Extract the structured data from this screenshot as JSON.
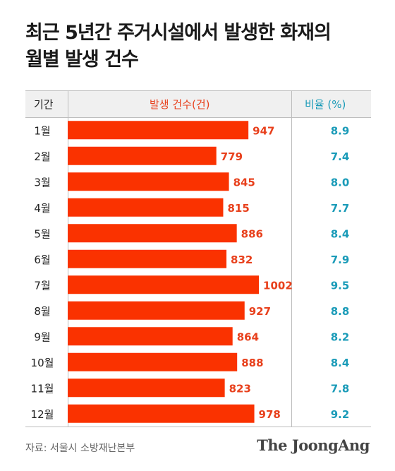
{
  "title_line1": "최근 5년간 주거시설에서 발생한 화재의",
  "title_line2": "월별 발생 건수",
  "chart_data": {
    "type": "bar",
    "orientation": "horizontal",
    "columns": [
      "기간",
      "발생 건수(건)",
      "비율 (%)"
    ],
    "categories": [
      "1월",
      "2월",
      "3월",
      "4월",
      "5월",
      "6월",
      "7월",
      "8월",
      "9월",
      "10월",
      "11월",
      "12월"
    ],
    "values": [
      947,
      779,
      845,
      815,
      886,
      832,
      1002,
      927,
      864,
      888,
      823,
      978
    ],
    "ratios": [
      "8.9",
      "7.4",
      "8.0",
      "7.7",
      "8.4",
      "7.9",
      "9.5",
      "8.8",
      "8.2",
      "8.4",
      "7.8",
      "9.2"
    ],
    "colors": {
      "bar": "#fa3200",
      "count_label": "#e8401c",
      "ratio_label": "#1a9bb8"
    }
  },
  "footer": {
    "source": "자료: 서울시 소방재난본부",
    "brand": "The JoongAng"
  }
}
